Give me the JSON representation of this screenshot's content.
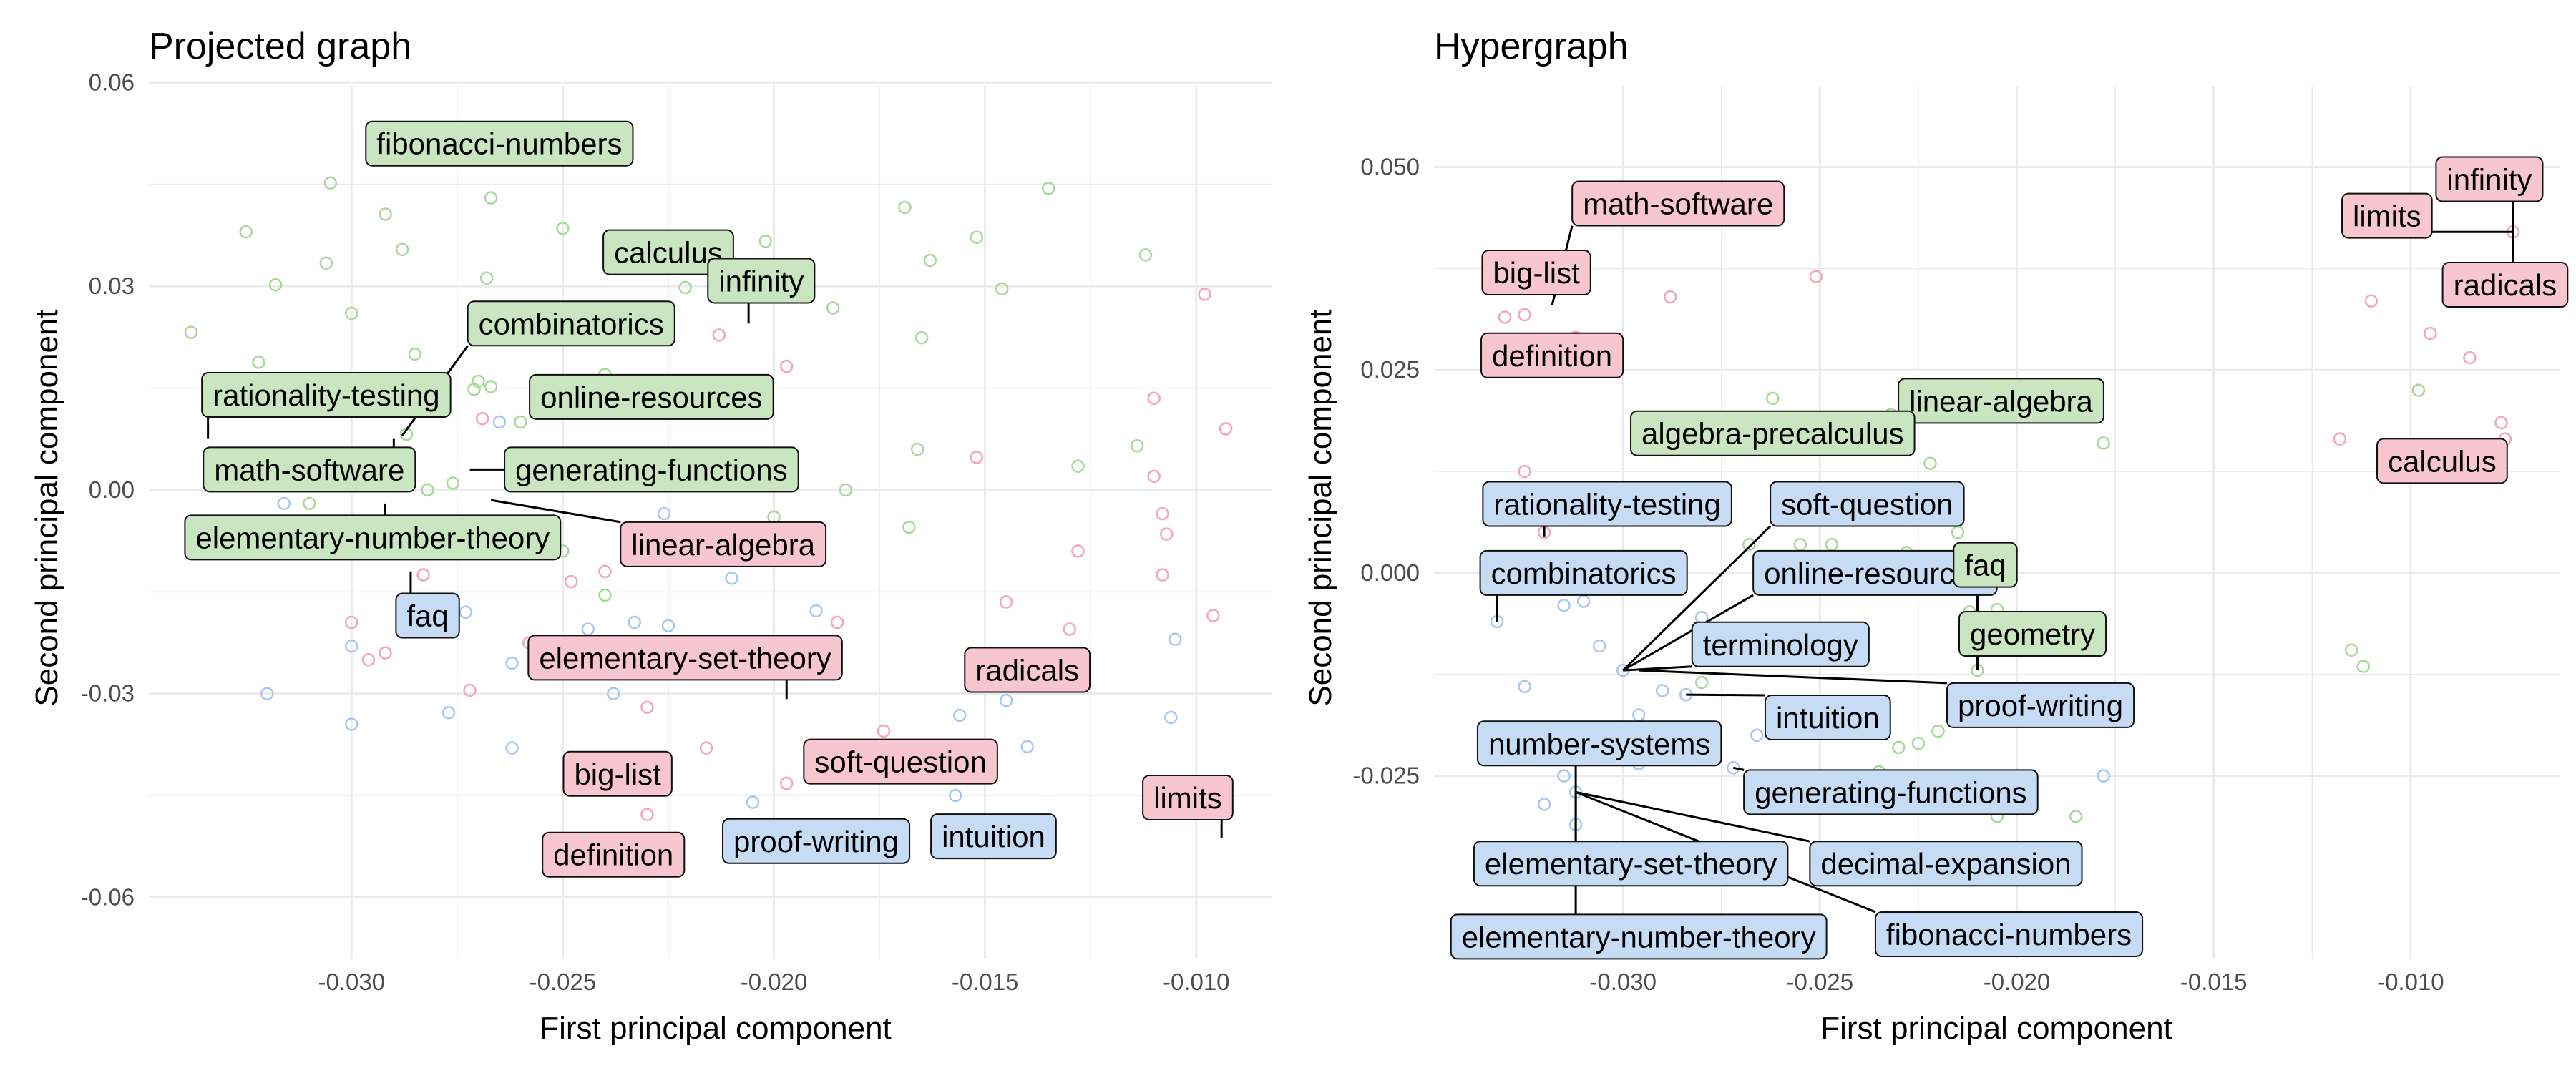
{
  "colors": {
    "green_fill": "#c9e6c0",
    "green_point": "#a6d99a",
    "pink_fill": "#f7c6d0",
    "pink_point": "#f2a6b8",
    "blue_fill": "#c6dcf4",
    "blue_point": "#a7c8ee",
    "grid": "#ebebeb"
  },
  "chart_data": [
    {
      "type": "scatter",
      "title": "Projected graph",
      "xlabel": "First principal component",
      "ylabel": "Second principal component",
      "xlim": [
        -0.0348,
        -0.0082
      ],
      "ylim": [
        -0.069,
        0.0595
      ],
      "xticks": [
        -0.03,
        -0.025,
        -0.02,
        -0.015,
        -0.01
      ],
      "xtick_labels": [
        "-0.030",
        "-0.025",
        "-0.020",
        "-0.015",
        "-0.010"
      ],
      "yticks": [
        0.06,
        0.03,
        0.0,
        -0.03,
        -0.06
      ],
      "ytick_labels": [
        "0.06",
        "0.03",
        "0.00",
        "-0.03",
        "-0.06"
      ],
      "grid": true,
      "labels": [
        {
          "text": "fibonacci-numbers",
          "group": "green",
          "x": -0.0265,
          "y": 0.051
        },
        {
          "text": "calculus",
          "group": "green",
          "x": -0.0225,
          "y": 0.035
        },
        {
          "text": "infinity",
          "group": "green",
          "x": -0.0203,
          "y": 0.0308,
          "point": [
            -0.0206,
            0.0245
          ]
        },
        {
          "text": "combinatorics",
          "group": "green",
          "x": -0.0248,
          "y": 0.0245,
          "point": [
            -0.0288,
            0.008
          ]
        },
        {
          "text": "rationality-testing",
          "group": "green",
          "x": -0.0306,
          "y": 0.014,
          "point": [
            -0.0334,
            0.0075
          ]
        },
        {
          "text": "online-resources",
          "group": "green",
          "x": -0.0229,
          "y": 0.0137
        },
        {
          "text": "math-software",
          "group": "green",
          "x": -0.031,
          "y": 0.003,
          "point": [
            -0.029,
            0.0075
          ]
        },
        {
          "text": "generating-functions",
          "group": "green",
          "x": -0.0229,
          "y": 0.003,
          "point": [
            -0.0272,
            0.003
          ]
        },
        {
          "text": "elementary-number-theory",
          "group": "green",
          "x": -0.0295,
          "y": -0.007,
          "point": [
            -0.0292,
            -0.002
          ]
        },
        {
          "text": "linear-algebra",
          "group": "pink",
          "x": -0.0212,
          "y": -0.008,
          "point": [
            -0.0267,
            -0.0015
          ]
        },
        {
          "text": "faq",
          "group": "blue",
          "x": -0.0282,
          "y": -0.0185,
          "point": [
            -0.0286,
            -0.012
          ]
        },
        {
          "text": "elementary-set-theory",
          "group": "pink",
          "x": -0.0221,
          "y": -0.0247,
          "point": [
            -0.0197,
            -0.0308
          ]
        },
        {
          "text": "radicals",
          "group": "pink",
          "x": -0.014,
          "y": -0.0265
        },
        {
          "text": "big-list",
          "group": "pink",
          "x": -0.0237,
          "y": -0.0418
        },
        {
          "text": "soft-question",
          "group": "pink",
          "x": -0.017,
          "y": -0.04
        },
        {
          "text": "limits",
          "group": "pink",
          "x": -0.0102,
          "y": -0.0453,
          "point": [
            -0.0094,
            -0.0512
          ]
        },
        {
          "text": "definition",
          "group": "pink",
          "x": -0.0238,
          "y": -0.0537
        },
        {
          "text": "proof-writing",
          "group": "blue",
          "x": -0.019,
          "y": -0.0517
        },
        {
          "text": "intuition",
          "group": "blue",
          "x": -0.0148,
          "y": -0.051
        }
      ],
      "points": {
        "green": [
          [
            -0.0338,
            0.0232
          ],
          [
            -0.0325,
            0.038
          ],
          [
            -0.0318,
            0.0302
          ],
          [
            -0.0306,
            0.0334
          ],
          [
            -0.0305,
            0.0452
          ],
          [
            -0.03,
            0.026
          ],
          [
            -0.0292,
            0.0406
          ],
          [
            -0.0288,
            0.0354
          ],
          [
            -0.0268,
            0.0312
          ],
          [
            -0.0267,
            0.043
          ],
          [
            -0.025,
            0.0385
          ],
          [
            -0.0221,
            0.0298
          ],
          [
            -0.0202,
            0.0366
          ],
          [
            -0.0169,
            0.0416
          ],
          [
            -0.0163,
            0.0338
          ],
          [
            -0.0152,
            0.0372
          ],
          [
            -0.0146,
            0.0296
          ],
          [
            -0.0135,
            0.0444
          ],
          [
            -0.0112,
            0.0346
          ],
          [
            -0.0165,
            0.0224
          ],
          [
            -0.0186,
            0.0268
          ],
          [
            -0.0271,
            0.0148
          ],
          [
            -0.0267,
            0.0152
          ],
          [
            -0.0285,
            0.02
          ],
          [
            -0.0287,
            0.0082
          ],
          [
            -0.0282,
            0.0
          ],
          [
            -0.0276,
            0.001
          ],
          [
            -0.027,
            0.016
          ],
          [
            -0.026,
            0.01
          ],
          [
            -0.024,
            0.017
          ],
          [
            -0.0322,
            0.0188
          ],
          [
            -0.031,
            -0.002
          ],
          [
            -0.0297,
            -0.005
          ],
          [
            -0.0168,
            -0.0055
          ],
          [
            -0.0166,
            0.006
          ],
          [
            -0.0128,
            0.0035
          ],
          [
            -0.0183,
            0.0
          ],
          [
            -0.02,
            -0.004
          ],
          [
            -0.024,
            -0.0155
          ],
          [
            -0.025,
            -0.009
          ],
          [
            -0.0114,
            0.0065
          ]
        ],
        "pink": [
          [
            -0.03,
            -0.0195
          ],
          [
            -0.0296,
            -0.025
          ],
          [
            -0.0292,
            -0.024
          ],
          [
            -0.0283,
            -0.0125
          ],
          [
            -0.0272,
            -0.0295
          ],
          [
            -0.0269,
            0.0105
          ],
          [
            -0.0258,
            -0.0225
          ],
          [
            -0.0248,
            -0.0135
          ],
          [
            -0.024,
            -0.012
          ],
          [
            -0.023,
            -0.032
          ],
          [
            -0.023,
            -0.0478
          ],
          [
            -0.0216,
            -0.038
          ],
          [
            -0.0213,
            0.0228
          ],
          [
            -0.0197,
            0.0182
          ],
          [
            -0.0197,
            -0.0432
          ],
          [
            -0.0174,
            -0.0355
          ],
          [
            -0.0185,
            -0.0195
          ],
          [
            -0.0152,
            0.0048
          ],
          [
            -0.0145,
            -0.0165
          ],
          [
            -0.013,
            -0.0205
          ],
          [
            -0.0128,
            -0.009
          ],
          [
            -0.011,
            0.0135
          ],
          [
            -0.011,
            0.002
          ],
          [
            -0.0108,
            -0.0035
          ],
          [
            -0.0107,
            -0.0065
          ],
          [
            -0.0098,
            0.0288
          ],
          [
            -0.0096,
            -0.0185
          ],
          [
            -0.0093,
            0.009
          ],
          [
            -0.0108,
            -0.0125
          ]
        ],
        "blue": [
          [
            -0.032,
            -0.03
          ],
          [
            -0.0316,
            -0.002
          ],
          [
            -0.03,
            -0.023
          ],
          [
            -0.03,
            -0.0345
          ],
          [
            -0.0277,
            -0.0328
          ],
          [
            -0.0262,
            -0.0255
          ],
          [
            -0.0262,
            -0.038
          ],
          [
            -0.0238,
            -0.03
          ],
          [
            -0.0233,
            -0.0195
          ],
          [
            -0.021,
            -0.013
          ],
          [
            -0.0205,
            -0.046
          ],
          [
            -0.019,
            -0.0178
          ],
          [
            -0.0157,
            -0.045
          ],
          [
            -0.0156,
            -0.0332
          ],
          [
            -0.0145,
            -0.031
          ],
          [
            -0.014,
            -0.0378
          ],
          [
            -0.0105,
            -0.022
          ],
          [
            -0.0106,
            -0.0335
          ],
          [
            -0.0244,
            -0.0205
          ],
          [
            -0.0225,
            -0.02
          ],
          [
            -0.0265,
            0.01
          ],
          [
            -0.0273,
            -0.018
          ],
          [
            -0.0226,
            -0.0035
          ]
        ]
      }
    },
    {
      "type": "scatter",
      "title": "Hypergraph",
      "xlabel": "First principal component",
      "ylabel": "Second principal component",
      "xlim": [
        -0.0348,
        -0.0062
      ],
      "ylim": [
        -0.0475,
        0.06
      ],
      "xticks": [
        -0.03,
        -0.025,
        -0.02,
        -0.015,
        -0.01
      ],
      "xtick_labels": [
        "-0.030",
        "-0.025",
        "-0.020",
        "-0.015",
        "-0.010"
      ],
      "yticks": [
        0.05,
        0.025,
        0.0,
        -0.025
      ],
      "ytick_labels": [
        "0.050",
        "0.025",
        "0.000",
        "-0.025"
      ],
      "grid": true,
      "labels": [
        {
          "text": "math-software",
          "group": "pink",
          "x": -0.0286,
          "y": 0.0455,
          "point": [
            -0.0318,
            0.033
          ]
        },
        {
          "text": "big-list",
          "group": "pink",
          "x": -0.0322,
          "y": 0.037
        },
        {
          "text": "definition",
          "group": "pink",
          "x": -0.0318,
          "y": 0.0268
        },
        {
          "text": "infinity",
          "group": "pink",
          "x": -0.008,
          "y": 0.0485,
          "point": [
            -0.0074,
            0.042
          ]
        },
        {
          "text": "limits",
          "group": "pink",
          "x": -0.0106,
          "y": 0.044,
          "point": [
            -0.0074,
            0.042
          ]
        },
        {
          "text": "radicals",
          "group": "pink",
          "x": -0.0076,
          "y": 0.0355,
          "point": [
            -0.0074,
            0.042
          ]
        },
        {
          "text": "calculus",
          "group": "pink",
          "x": -0.0092,
          "y": 0.0138
        },
        {
          "text": "linear-algebra",
          "group": "green",
          "x": -0.0204,
          "y": 0.0212
        },
        {
          "text": "algebra-precalculus",
          "group": "green",
          "x": -0.0262,
          "y": 0.0172
        },
        {
          "text": "rationality-testing",
          "group": "blue",
          "x": -0.0304,
          "y": 0.0085,
          "point": [
            -0.032,
            0.0045
          ]
        },
        {
          "text": "soft-question",
          "group": "blue",
          "x": -0.0238,
          "y": 0.0085,
          "point": [
            -0.03,
            -0.012
          ]
        },
        {
          "text": "combinatorics",
          "group": "blue",
          "x": -0.031,
          "y": 0.0,
          "point": [
            -0.0332,
            -0.006
          ]
        },
        {
          "text": "online-resources",
          "group": "blue",
          "x": -0.0236,
          "y": 0.0,
          "point": [
            -0.03,
            -0.012
          ]
        },
        {
          "text": "faq",
          "group": "green",
          "x": -0.0208,
          "y": 0.001,
          "point": [
            -0.021,
            -0.005
          ]
        },
        {
          "text": "terminology",
          "group": "blue",
          "x": -0.026,
          "y": -0.0088,
          "point": [
            -0.03,
            -0.012
          ]
        },
        {
          "text": "geometry",
          "group": "green",
          "x": -0.0196,
          "y": -0.0075,
          "point": [
            -0.021,
            -0.012
          ]
        },
        {
          "text": "intuition",
          "group": "blue",
          "x": -0.0248,
          "y": -0.0178,
          "point": [
            -0.0284,
            -0.015
          ]
        },
        {
          "text": "proof-writing",
          "group": "blue",
          "x": -0.0194,
          "y": -0.0163,
          "point": [
            -0.0296,
            -0.012
          ]
        },
        {
          "text": "number-systems",
          "group": "blue",
          "x": -0.0306,
          "y": -0.021,
          "point": [
            -0.0312,
            -0.027
          ]
        },
        {
          "text": "generating-functions",
          "group": "blue",
          "x": -0.0232,
          "y": -0.027,
          "point": [
            -0.0272,
            -0.024
          ]
        },
        {
          "text": "elementary-set-theory",
          "group": "blue",
          "x": -0.0298,
          "y": -0.0358,
          "point": [
            -0.0312,
            -0.027
          ]
        },
        {
          "text": "decimal-expansion",
          "group": "blue",
          "x": -0.0218,
          "y": -0.0358,
          "point": [
            -0.0312,
            -0.027
          ]
        },
        {
          "text": "elementary-number-theory",
          "group": "blue",
          "x": -0.0296,
          "y": -0.0448,
          "point": [
            -0.0312,
            -0.027
          ]
        },
        {
          "text": "fibonacci-numbers",
          "group": "blue",
          "x": -0.0202,
          "y": -0.0445,
          "point": [
            -0.0312,
            -0.027
          ]
        }
      ],
      "points": {
        "pink": [
          [
            -0.033,
            0.0315
          ],
          [
            -0.0325,
            0.0318
          ],
          [
            -0.0312,
            0.029
          ],
          [
            -0.0304,
            0.0265
          ],
          [
            -0.0288,
            0.034
          ],
          [
            -0.0251,
            0.0365
          ],
          [
            -0.011,
            0.0335
          ],
          [
            -0.0095,
            0.0295
          ],
          [
            -0.0085,
            0.0265
          ],
          [
            -0.0077,
            0.0185
          ],
          [
            -0.0076,
            0.0165
          ],
          [
            -0.0118,
            0.0165
          ],
          [
            -0.0074,
            0.042
          ],
          [
            -0.0325,
            0.0125
          ],
          [
            -0.032,
            0.005
          ]
        ],
        "green": [
          [
            -0.0262,
            0.0215
          ],
          [
            -0.0245,
            0.017
          ],
          [
            -0.0232,
            0.0195
          ],
          [
            -0.0228,
            0.0165
          ],
          [
            -0.0222,
            0.0135
          ],
          [
            -0.0225,
            0.0105
          ],
          [
            -0.0243,
            0.0105
          ],
          [
            -0.0255,
            0.0035
          ],
          [
            -0.0268,
            0.0035
          ],
          [
            -0.0247,
            0.0035
          ],
          [
            -0.0228,
            0.0025
          ],
          [
            -0.0215,
            0.005
          ],
          [
            -0.022,
            -0.001
          ],
          [
            -0.0212,
            -0.0048
          ],
          [
            -0.0205,
            -0.0045
          ],
          [
            -0.021,
            -0.012
          ],
          [
            -0.0205,
            -0.0178
          ],
          [
            -0.022,
            -0.0195
          ],
          [
            -0.023,
            -0.0215
          ],
          [
            -0.0225,
            -0.021
          ],
          [
            -0.0242,
            -0.0195
          ],
          [
            -0.0235,
            -0.0245
          ],
          [
            -0.0228,
            -0.0285
          ],
          [
            -0.0205,
            -0.03
          ],
          [
            -0.0185,
            -0.03
          ],
          [
            -0.0178,
            0.016
          ],
          [
            -0.0098,
            0.0225
          ],
          [
            -0.0115,
            -0.0095
          ],
          [
            -0.0112,
            -0.0115
          ],
          [
            -0.028,
            -0.0135
          ],
          [
            -0.0215,
            -0.0165
          ]
        ],
        "blue": [
          [
            -0.0332,
            -0.006
          ],
          [
            -0.0325,
            -0.014
          ],
          [
            -0.032,
            -0.0285
          ],
          [
            -0.0315,
            -0.025
          ],
          [
            -0.0312,
            -0.027
          ],
          [
            -0.0306,
            -0.009
          ],
          [
            -0.03,
            -0.012
          ],
          [
            -0.0296,
            -0.0175
          ],
          [
            -0.029,
            -0.0145
          ],
          [
            -0.0284,
            -0.015
          ],
          [
            -0.0272,
            -0.024
          ],
          [
            -0.028,
            -0.0055
          ],
          [
            -0.0266,
            -0.02
          ],
          [
            -0.0315,
            -0.004
          ],
          [
            -0.031,
            -0.0035
          ],
          [
            -0.0178,
            -0.025
          ],
          [
            -0.024,
            -0.0275
          ],
          [
            -0.0296,
            -0.0235
          ],
          [
            -0.03,
            -0.02
          ],
          [
            -0.0312,
            -0.031
          ]
        ]
      }
    }
  ]
}
